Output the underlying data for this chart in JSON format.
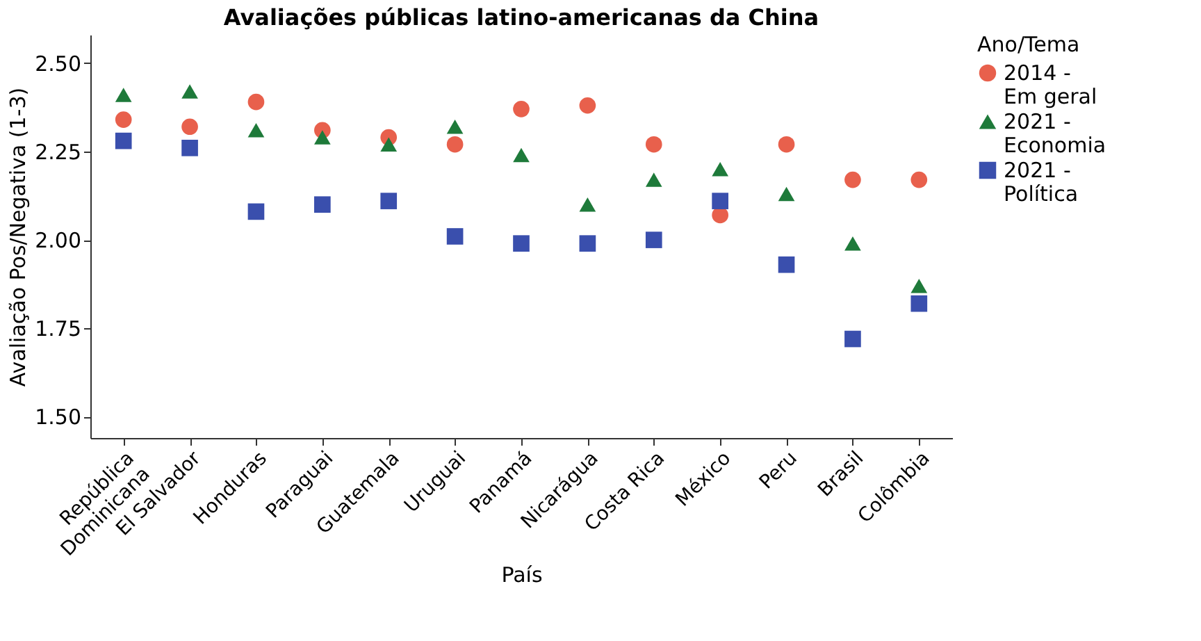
{
  "chart_data": {
    "type": "scatter",
    "title": "Avaliações públicas latino-americanas da China",
    "xlabel": "País",
    "ylabel": "Avaliação Pos/Negativa (1-3)",
    "legend_title": "Ano/Tema",
    "legend": "right",
    "categories": [
      "República Dominicana",
      "El Salvador",
      "Honduras",
      "Paraguai",
      "Guatemala",
      "Uruguai",
      "Panamá",
      "Nicarágua",
      "Costa Rica",
      "México",
      "Peru",
      "Brasil",
      "Colômbia"
    ],
    "ylim": [
      1.44,
      2.58
    ],
    "yticks": [
      {
        "value": 1.5,
        "label": "1.50"
      },
      1.75,
      {
        "value": 2.0,
        "label": "2.00"
      },
      2.25,
      {
        "value": 2.5,
        "label": "2.50"
      }
    ],
    "grid": false,
    "series": [
      {
        "name": "2014 - Em geral",
        "color": "#e8604c",
        "marker": "circle",
        "values": [
          2.34,
          2.32,
          2.39,
          2.31,
          2.29,
          2.27,
          2.37,
          2.38,
          2.27,
          2.07,
          2.27,
          2.17,
          2.17
        ]
      },
      {
        "name": "2021 - Economia",
        "color": "#1e7a3a",
        "marker": "triangle",
        "values": [
          2.41,
          2.42,
          2.31,
          2.29,
          2.27,
          2.32,
          2.24,
          2.1,
          2.17,
          2.2,
          2.13,
          1.99,
          1.87
        ]
      },
      {
        "name": "2021 - Política",
        "color": "#3a4fad",
        "marker": "square",
        "values": [
          2.28,
          2.26,
          2.08,
          2.1,
          2.11,
          2.01,
          1.99,
          1.99,
          2.0,
          2.11,
          1.93,
          1.72,
          1.82
        ]
      }
    ]
  }
}
